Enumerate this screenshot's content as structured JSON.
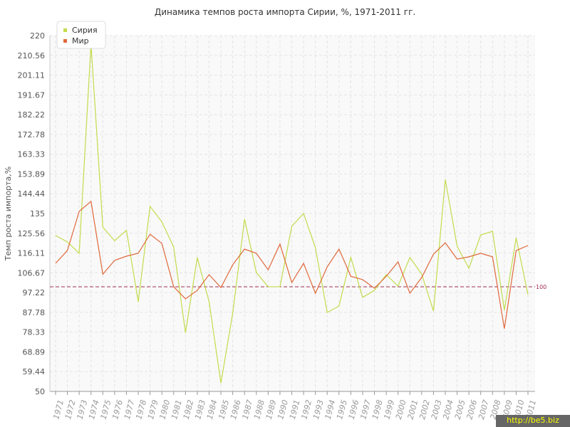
{
  "chart_data": {
    "type": "line",
    "title": "Динамика темпов роста импорта Сирии, %, 1971-2011 гг.",
    "y_label": "Темп роста импорта,%",
    "watermark": "http://be5.biz",
    "legend_position": "top-left",
    "grid": true,
    "reference_line": 100,
    "categories": [
      "1971",
      "1972",
      "1973",
      "1974",
      "1975",
      "1976",
      "1977",
      "1978",
      "1979",
      "1980",
      "1981",
      "1982",
      "1983",
      "1984",
      "1985",
      "1986",
      "1987",
      "1988",
      "1989",
      "1990",
      "1991",
      "1992",
      "1993",
      "1994",
      "1995",
      "1996",
      "1997",
      "1998",
      "1999",
      "2000",
      "2001",
      "2002",
      "2003",
      "2004",
      "2005",
      "2006",
      "2007",
      "2008",
      "2009",
      "2010",
      "2011"
    ],
    "series": [
      {
        "name": "Сирия",
        "color": "#c2dc4c",
        "values": [
          124.5,
          121.4,
          116,
          216,
          128.5,
          122,
          127,
          92.8,
          138.4,
          131,
          119,
          78,
          114,
          92.8,
          54,
          87.4,
          132.3,
          106.8,
          100,
          100,
          128.9,
          135,
          118.7,
          87.7,
          90.8,
          114,
          94.9,
          98.3,
          105.8,
          100.3,
          114,
          106,
          88.4,
          151.3,
          119.4,
          108.8,
          124.8,
          126.5,
          88.8,
          123.4,
          96.2
        ]
      },
      {
        "name": "Мир",
        "color": "#e0683a",
        "values": [
          111.2,
          117.3,
          136,
          140.8,
          106,
          112.6,
          114.6,
          116,
          125.1,
          120.7,
          100,
          94.2,
          98.3,
          105.8,
          99.6,
          110.5,
          118,
          116,
          108.1,
          120.4,
          102,
          111.2,
          96.9,
          109.5,
          118,
          105,
          103.4,
          99.3,
          105,
          111.9,
          96.9,
          104.4,
          115.6,
          121,
          113.2,
          114.3,
          116,
          114.3,
          80,
          117.3,
          119.7
        ]
      }
    ],
    "ylim": [
      50,
      220
    ],
    "yticks": [
      50,
      59.44,
      68.89,
      78.33,
      87.78,
      97.22,
      106.67,
      116.11,
      125.56,
      135,
      144.44,
      153.89,
      163.33,
      172.78,
      182.22,
      191.67,
      201.11,
      210.56,
      220
    ]
  }
}
